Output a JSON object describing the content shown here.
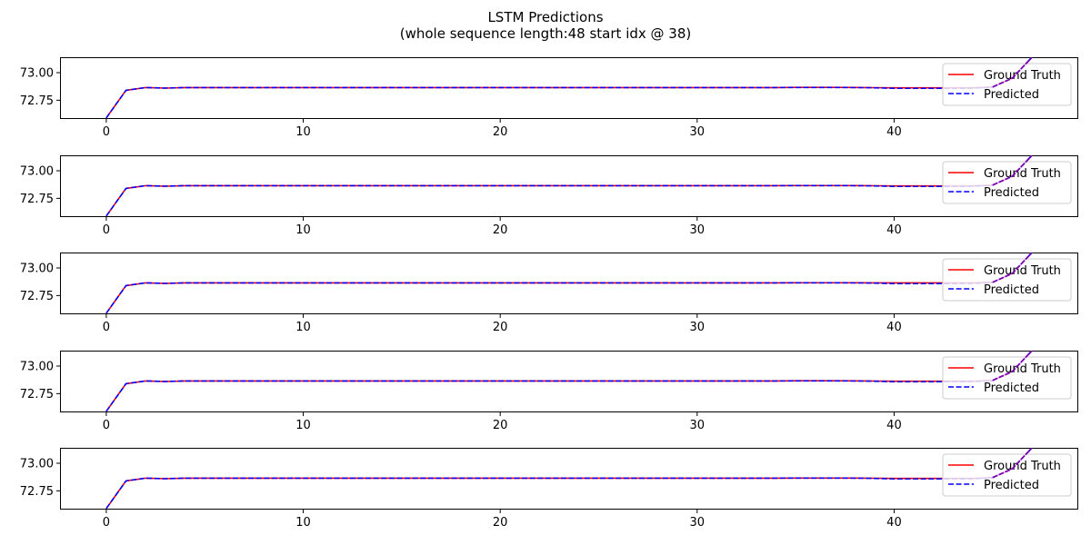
{
  "title_line1": "LSTM Predictions",
  "title_line2": "(whole sequence length:48 start idx @ 38)",
  "legend": {
    "ground_truth_label": "Ground Truth",
    "predicted_label": "Predicted"
  },
  "colors": {
    "ground_truth": "#ff0000",
    "predicted": "#0000ff",
    "predicted_overlap": "#7a00b0"
  },
  "chart_data": [
    {
      "type": "line",
      "title": "",
      "xlabel": "",
      "ylabel": "",
      "xlim": [
        -2.35,
        49.35
      ],
      "ylim": [
        72.58,
        73.14
      ],
      "xticks": [
        0,
        10,
        20,
        30,
        40
      ],
      "yticks": [
        72.75,
        73.0
      ],
      "ytick_labels": [
        "72.75",
        "73.00"
      ],
      "grid": false,
      "legend_position": "upper right",
      "x": [
        0,
        1,
        2,
        3,
        4,
        5,
        6,
        7,
        8,
        9,
        10,
        11,
        12,
        13,
        14,
        15,
        16,
        17,
        18,
        19,
        20,
        21,
        22,
        23,
        24,
        25,
        26,
        27,
        28,
        29,
        30,
        31,
        32,
        33,
        34,
        35,
        36,
        37,
        38,
        39,
        40,
        41,
        42,
        43,
        44,
        45,
        46,
        47
      ],
      "series": [
        {
          "name": "Ground Truth",
          "values": [
            72.59,
            72.84,
            72.865,
            72.86,
            72.865,
            72.865,
            72.865,
            72.865,
            72.865,
            72.865,
            72.865,
            72.865,
            72.865,
            72.865,
            72.865,
            72.865,
            72.865,
            72.865,
            72.865,
            72.865,
            72.865,
            72.865,
            72.865,
            72.865,
            72.865,
            72.865,
            72.865,
            72.865,
            72.865,
            72.865,
            72.865,
            72.865,
            72.865,
            72.865,
            72.865,
            72.867,
            72.867,
            72.867,
            72.866,
            72.864,
            72.863,
            72.863,
            72.863,
            72.863,
            72.863,
            72.87,
            72.95,
            73.14
          ]
        },
        {
          "name": "Predicted",
          "values": [
            72.59,
            72.84,
            72.865,
            72.86,
            72.865,
            72.865,
            72.865,
            72.865,
            72.865,
            72.865,
            72.865,
            72.865,
            72.865,
            72.865,
            72.865,
            72.865,
            72.865,
            72.865,
            72.865,
            72.865,
            72.865,
            72.865,
            72.865,
            72.865,
            72.865,
            72.865,
            72.865,
            72.865,
            72.865,
            72.865,
            72.865,
            72.865,
            72.865,
            72.865,
            72.865,
            72.866,
            72.866,
            72.866,
            72.865,
            72.863,
            72.858,
            72.858,
            72.858,
            72.859,
            72.86,
            72.868,
            72.95,
            73.14
          ]
        }
      ]
    },
    {
      "type": "line",
      "title": "",
      "xlabel": "",
      "ylabel": "",
      "xlim": [
        -2.35,
        49.35
      ],
      "ylim": [
        72.58,
        73.14
      ],
      "xticks": [
        0,
        10,
        20,
        30,
        40
      ],
      "yticks": [
        72.75,
        73.0
      ],
      "ytick_labels": [
        "72.75",
        "73.00"
      ],
      "grid": false,
      "legend_position": "upper right",
      "x": [
        0,
        1,
        2,
        3,
        4,
        5,
        6,
        7,
        8,
        9,
        10,
        11,
        12,
        13,
        14,
        15,
        16,
        17,
        18,
        19,
        20,
        21,
        22,
        23,
        24,
        25,
        26,
        27,
        28,
        29,
        30,
        31,
        32,
        33,
        34,
        35,
        36,
        37,
        38,
        39,
        40,
        41,
        42,
        43,
        44,
        45,
        46,
        47
      ],
      "series": [
        {
          "name": "Ground Truth",
          "values": [
            72.59,
            72.84,
            72.865,
            72.86,
            72.865,
            72.865,
            72.865,
            72.865,
            72.865,
            72.865,
            72.865,
            72.865,
            72.865,
            72.865,
            72.865,
            72.865,
            72.865,
            72.865,
            72.865,
            72.865,
            72.865,
            72.865,
            72.865,
            72.865,
            72.865,
            72.865,
            72.865,
            72.865,
            72.865,
            72.865,
            72.865,
            72.865,
            72.865,
            72.865,
            72.865,
            72.866,
            72.866,
            72.866,
            72.866,
            72.864,
            72.863,
            72.863,
            72.863,
            72.863,
            72.863,
            72.87,
            72.95,
            73.14
          ]
        },
        {
          "name": "Predicted",
          "values": [
            72.59,
            72.84,
            72.865,
            72.86,
            72.865,
            72.865,
            72.865,
            72.865,
            72.865,
            72.865,
            72.865,
            72.865,
            72.865,
            72.865,
            72.865,
            72.865,
            72.865,
            72.865,
            72.865,
            72.865,
            72.865,
            72.865,
            72.865,
            72.865,
            72.865,
            72.865,
            72.865,
            72.865,
            72.865,
            72.865,
            72.865,
            72.865,
            72.865,
            72.865,
            72.865,
            72.866,
            72.866,
            72.866,
            72.865,
            72.863,
            72.858,
            72.858,
            72.858,
            72.859,
            72.86,
            72.868,
            72.95,
            73.14
          ]
        }
      ]
    },
    {
      "type": "line",
      "title": "",
      "xlabel": "",
      "ylabel": "",
      "xlim": [
        -2.35,
        49.35
      ],
      "ylim": [
        72.58,
        73.14
      ],
      "xticks": [
        0,
        10,
        20,
        30,
        40
      ],
      "yticks": [
        72.75,
        73.0
      ],
      "ytick_labels": [
        "72.75",
        "73.00"
      ],
      "grid": false,
      "legend_position": "upper right",
      "x": [
        0,
        1,
        2,
        3,
        4,
        5,
        6,
        7,
        8,
        9,
        10,
        11,
        12,
        13,
        14,
        15,
        16,
        17,
        18,
        19,
        20,
        21,
        22,
        23,
        24,
        25,
        26,
        27,
        28,
        29,
        30,
        31,
        32,
        33,
        34,
        35,
        36,
        37,
        38,
        39,
        40,
        41,
        42,
        43,
        44,
        45,
        46,
        47
      ],
      "series": [
        {
          "name": "Ground Truth",
          "values": [
            72.59,
            72.84,
            72.865,
            72.86,
            72.865,
            72.865,
            72.865,
            72.865,
            72.865,
            72.865,
            72.865,
            72.865,
            72.865,
            72.865,
            72.865,
            72.865,
            72.865,
            72.865,
            72.865,
            72.865,
            72.865,
            72.865,
            72.865,
            72.865,
            72.865,
            72.865,
            72.865,
            72.865,
            72.865,
            72.865,
            72.865,
            72.865,
            72.865,
            72.865,
            72.865,
            72.866,
            72.866,
            72.866,
            72.866,
            72.865,
            72.865,
            72.865,
            72.865,
            72.865,
            72.865,
            72.87,
            72.95,
            73.14
          ]
        },
        {
          "name": "Predicted",
          "values": [
            72.59,
            72.84,
            72.865,
            72.86,
            72.865,
            72.865,
            72.865,
            72.865,
            72.865,
            72.865,
            72.865,
            72.865,
            72.865,
            72.865,
            72.865,
            72.865,
            72.865,
            72.865,
            72.865,
            72.865,
            72.865,
            72.865,
            72.865,
            72.865,
            72.865,
            72.865,
            72.865,
            72.865,
            72.865,
            72.865,
            72.865,
            72.865,
            72.865,
            72.865,
            72.865,
            72.866,
            72.866,
            72.866,
            72.865,
            72.863,
            72.858,
            72.858,
            72.858,
            72.859,
            72.86,
            72.868,
            72.95,
            73.14
          ]
        }
      ]
    },
    {
      "type": "line",
      "title": "",
      "xlabel": "",
      "ylabel": "",
      "xlim": [
        -2.35,
        49.35
      ],
      "ylim": [
        72.58,
        73.14
      ],
      "xticks": [
        0,
        10,
        20,
        30,
        40
      ],
      "yticks": [
        72.75,
        73.0
      ],
      "ytick_labels": [
        "72.75",
        "73.00"
      ],
      "grid": false,
      "legend_position": "upper right",
      "x": [
        0,
        1,
        2,
        3,
        4,
        5,
        6,
        7,
        8,
        9,
        10,
        11,
        12,
        13,
        14,
        15,
        16,
        17,
        18,
        19,
        20,
        21,
        22,
        23,
        24,
        25,
        26,
        27,
        28,
        29,
        30,
        31,
        32,
        33,
        34,
        35,
        36,
        37,
        38,
        39,
        40,
        41,
        42,
        43,
        44,
        45,
        46,
        47
      ],
      "series": [
        {
          "name": "Ground Truth",
          "values": [
            72.59,
            72.84,
            72.865,
            72.86,
            72.865,
            72.865,
            72.865,
            72.865,
            72.865,
            72.865,
            72.865,
            72.865,
            72.865,
            72.865,
            72.865,
            72.865,
            72.865,
            72.865,
            72.865,
            72.865,
            72.865,
            72.865,
            72.865,
            72.865,
            72.865,
            72.865,
            72.865,
            72.865,
            72.865,
            72.865,
            72.865,
            72.865,
            72.865,
            72.865,
            72.865,
            72.867,
            72.867,
            72.867,
            72.866,
            72.864,
            72.863,
            72.863,
            72.863,
            72.863,
            72.863,
            72.87,
            72.95,
            73.14
          ]
        },
        {
          "name": "Predicted",
          "values": [
            72.59,
            72.84,
            72.865,
            72.86,
            72.865,
            72.865,
            72.865,
            72.865,
            72.865,
            72.865,
            72.865,
            72.865,
            72.865,
            72.865,
            72.865,
            72.865,
            72.865,
            72.865,
            72.865,
            72.865,
            72.865,
            72.865,
            72.865,
            72.865,
            72.865,
            72.865,
            72.865,
            72.865,
            72.865,
            72.865,
            72.865,
            72.865,
            72.865,
            72.865,
            72.865,
            72.866,
            72.866,
            72.866,
            72.865,
            72.863,
            72.858,
            72.858,
            72.858,
            72.859,
            72.86,
            72.868,
            72.95,
            73.14
          ]
        }
      ]
    },
    {
      "type": "line",
      "title": "",
      "xlabel": "",
      "ylabel": "",
      "xlim": [
        -2.35,
        49.35
      ],
      "ylim": [
        72.58,
        73.14
      ],
      "xticks": [
        0,
        10,
        20,
        30,
        40
      ],
      "yticks": [
        72.75,
        73.0
      ],
      "ytick_labels": [
        "72.75",
        "73.00"
      ],
      "grid": false,
      "legend_position": "upper right",
      "x": [
        0,
        1,
        2,
        3,
        4,
        5,
        6,
        7,
        8,
        9,
        10,
        11,
        12,
        13,
        14,
        15,
        16,
        17,
        18,
        19,
        20,
        21,
        22,
        23,
        24,
        25,
        26,
        27,
        28,
        29,
        30,
        31,
        32,
        33,
        34,
        35,
        36,
        37,
        38,
        39,
        40,
        41,
        42,
        43,
        44,
        45,
        46,
        47
      ],
      "series": [
        {
          "name": "Ground Truth",
          "values": [
            72.59,
            72.84,
            72.865,
            72.86,
            72.865,
            72.865,
            72.865,
            72.865,
            72.865,
            72.865,
            72.865,
            72.865,
            72.865,
            72.865,
            72.865,
            72.865,
            72.865,
            72.865,
            72.865,
            72.865,
            72.865,
            72.865,
            72.865,
            72.865,
            72.865,
            72.865,
            72.865,
            72.865,
            72.865,
            72.865,
            72.865,
            72.865,
            72.865,
            72.865,
            72.865,
            72.866,
            72.866,
            72.866,
            72.866,
            72.864,
            72.863,
            72.863,
            72.863,
            72.863,
            72.863,
            72.87,
            72.95,
            73.14
          ]
        },
        {
          "name": "Predicted",
          "values": [
            72.59,
            72.84,
            72.865,
            72.86,
            72.865,
            72.865,
            72.865,
            72.865,
            72.865,
            72.865,
            72.865,
            72.865,
            72.865,
            72.865,
            72.865,
            72.865,
            72.865,
            72.865,
            72.865,
            72.865,
            72.865,
            72.865,
            72.865,
            72.865,
            72.865,
            72.865,
            72.865,
            72.865,
            72.865,
            72.865,
            72.865,
            72.865,
            72.865,
            72.865,
            72.865,
            72.866,
            72.866,
            72.866,
            72.865,
            72.863,
            72.858,
            72.858,
            72.858,
            72.859,
            72.86,
            72.868,
            72.95,
            73.14
          ]
        }
      ]
    }
  ]
}
